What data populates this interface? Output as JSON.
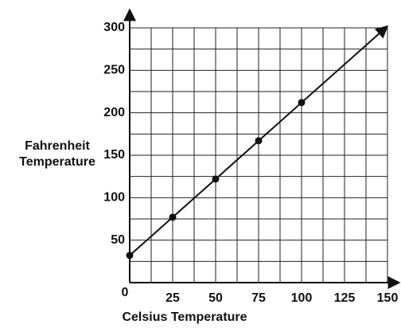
{
  "chart_data": {
    "type": "line",
    "x_label": "Celsius Temperature",
    "y_label": [
      "Fahrenheit",
      "Temperature"
    ],
    "x": [
      0,
      25,
      50,
      75,
      100
    ],
    "values": [
      32,
      77,
      122,
      167,
      212
    ],
    "line": {
      "x": [
        0,
        150
      ],
      "values": [
        32,
        302
      ]
    },
    "color": "#111111",
    "xlim": [
      0,
      150
    ],
    "ylim": [
      0,
      300
    ],
    "xticks": [
      0,
      25,
      50,
      75,
      100,
      125,
      150
    ],
    "yticks": [
      50,
      100,
      150,
      200,
      250,
      300
    ],
    "x_grid_step": 12.5,
    "y_grid_step": 25,
    "grid": true
  }
}
